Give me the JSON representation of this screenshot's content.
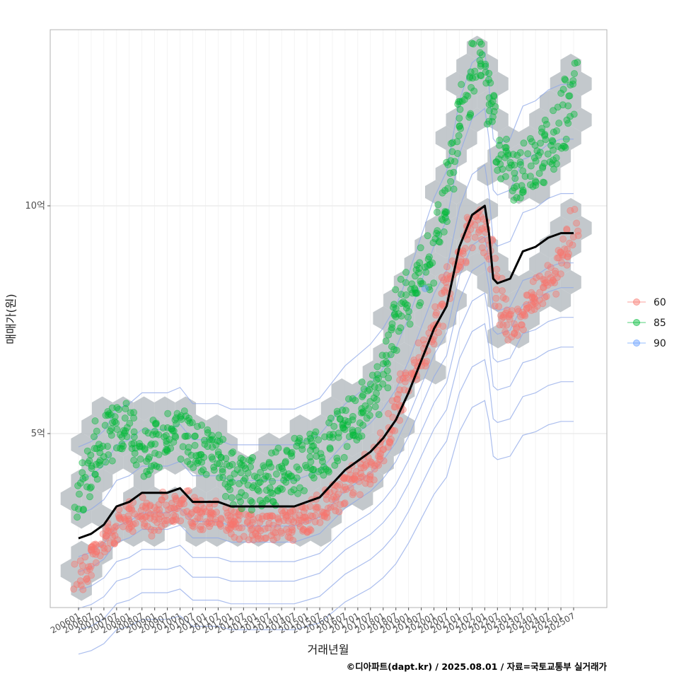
{
  "chart_data": {
    "type": "scatter",
    "xlabel": "거래년월",
    "ylabel": "매매가(원)",
    "caption": "©디아파트(dapt.kr) / 2025.08.01 / 자료=국토교통부 실거래가",
    "x_ticks": [
      "200601",
      "200607",
      "200701",
      "200707",
      "200801",
      "200807",
      "200901",
      "200907",
      "201001",
      "201007",
      "201101",
      "201107",
      "201201",
      "201207",
      "201301",
      "201307",
      "201401",
      "201407",
      "201501",
      "201507",
      "201601",
      "201607",
      "201701",
      "201707",
      "201801",
      "201807",
      "201901",
      "201907",
      "202001",
      "202007",
      "202101",
      "202107",
      "202201",
      "202207",
      "202301",
      "202307",
      "202401",
      "202407",
      "202501",
      "202507"
    ],
    "y_ticks": [
      {
        "value": 5,
        "label": "5억"
      },
      {
        "value": 10,
        "label": "10억"
      }
    ],
    "ylim": [
      1.2,
      13.9
    ],
    "grid": true,
    "legend_position": "right",
    "colors": {
      "60": "#f8766d",
      "85": "#00ba38",
      "90": "#619cff",
      "trend": "#000000",
      "hex": "#b9bec3",
      "contour": "#8fa8e8"
    },
    "series": [
      {
        "name": "60",
        "points": [
          [
            "200601",
            1.9
          ],
          [
            "200603",
            2.0
          ],
          [
            "200605",
            2.2
          ],
          [
            "200607",
            2.3
          ],
          [
            "200609",
            2.4
          ],
          [
            "200611",
            2.6
          ],
          [
            "200701",
            2.7
          ],
          [
            "200703",
            2.8
          ],
          [
            "200705",
            2.9
          ],
          [
            "200707",
            3.0
          ],
          [
            "200709",
            3.0
          ],
          [
            "200711",
            3.1
          ],
          [
            "200801",
            3.2
          ],
          [
            "200803",
            3.2
          ],
          [
            "200805",
            3.3
          ],
          [
            "200807",
            3.3
          ],
          [
            "200809",
            3.2
          ],
          [
            "200811",
            3.1
          ],
          [
            "200901",
            3.1
          ],
          [
            "200903",
            3.2
          ],
          [
            "200905",
            3.3
          ],
          [
            "200907",
            3.4
          ],
          [
            "200909",
            3.4
          ],
          [
            "200911",
            3.4
          ],
          [
            "201001",
            3.4
          ],
          [
            "201003",
            3.4
          ],
          [
            "201005",
            3.3
          ],
          [
            "201007",
            3.3
          ],
          [
            "201009",
            3.2
          ],
          [
            "201011",
            3.2
          ],
          [
            "201101",
            3.2
          ],
          [
            "201103",
            3.2
          ],
          [
            "201105",
            3.2
          ],
          [
            "201107",
            3.2
          ],
          [
            "201109",
            3.2
          ],
          [
            "201111",
            3.1
          ],
          [
            "201201",
            3.1
          ],
          [
            "201203",
            3.1
          ],
          [
            "201205",
            3.0
          ],
          [
            "201207",
            3.0
          ],
          [
            "201209",
            2.9
          ],
          [
            "201211",
            2.9
          ],
          [
            "201301",
            2.9
          ],
          [
            "201303",
            2.9
          ],
          [
            "201305",
            2.9
          ],
          [
            "201307",
            2.9
          ],
          [
            "201309",
            2.9
          ],
          [
            "201311",
            3.0
          ],
          [
            "201401",
            3.0
          ],
          [
            "201403",
            3.0
          ],
          [
            "201405",
            3.0
          ],
          [
            "201407",
            3.0
          ],
          [
            "201409",
            3.1
          ],
          [
            "201411",
            3.1
          ],
          [
            "201501",
            3.1
          ],
          [
            "201503",
            3.2
          ],
          [
            "201505",
            3.3
          ],
          [
            "201507",
            3.4
          ],
          [
            "201509",
            3.5
          ],
          [
            "201511",
            3.5
          ],
          [
            "201601",
            3.6
          ],
          [
            "201603",
            3.6
          ],
          [
            "201605",
            3.7
          ],
          [
            "201607",
            3.8
          ],
          [
            "201609",
            3.9
          ],
          [
            "201611",
            4.0
          ],
          [
            "201701",
            4.0
          ],
          [
            "201703",
            4.1
          ],
          [
            "201705",
            4.2
          ],
          [
            "201707",
            4.3
          ],
          [
            "201709",
            4.4
          ],
          [
            "201711",
            4.5
          ],
          [
            "201801",
            4.7
          ],
          [
            "201803",
            4.9
          ],
          [
            "201805",
            5.1
          ],
          [
            "201807",
            5.4
          ],
          [
            "201809",
            5.7
          ],
          [
            "201811",
            6.0
          ],
          [
            "201901",
            6.2
          ],
          [
            "201903",
            6.4
          ],
          [
            "201905",
            6.6
          ],
          [
            "201907",
            6.8
          ],
          [
            "201909",
            6.9
          ],
          [
            "201911",
            7.1
          ],
          [
            "202001",
            7.3
          ],
          [
            "202003",
            7.5
          ],
          [
            "202005",
            7.8
          ],
          [
            "202007",
            8.1
          ],
          [
            "202009",
            8.4
          ],
          [
            "202011",
            8.7
          ],
          [
            "202101",
            8.9
          ],
          [
            "202103",
            9.1
          ],
          [
            "202105",
            9.3
          ],
          [
            "202107",
            9.5
          ],
          [
            "202109",
            9.6
          ],
          [
            "202111",
            9.5
          ],
          [
            "202201",
            9.3
          ],
          [
            "202203",
            9.0
          ],
          [
            "202205",
            8.6
          ],
          [
            "202207",
            8.1
          ],
          [
            "202209",
            7.7
          ],
          [
            "202211",
            7.4
          ],
          [
            "202301",
            7.3
          ],
          [
            "202303",
            7.4
          ],
          [
            "202305",
            7.5
          ],
          [
            "202307",
            7.6
          ],
          [
            "202309",
            7.8
          ],
          [
            "202311",
            7.9
          ],
          [
            "202401",
            8.0
          ],
          [
            "202403",
            8.1
          ],
          [
            "202405",
            8.2
          ],
          [
            "202407",
            8.3
          ],
          [
            "202409",
            8.4
          ],
          [
            "202411",
            8.6
          ],
          [
            "202501",
            8.8
          ],
          [
            "202503",
            9.0
          ],
          [
            "202505",
            9.3
          ],
          [
            "202507",
            9.6
          ]
        ]
      },
      {
        "name": "85",
        "points": [
          [
            "200601",
            3.6
          ],
          [
            "200603",
            3.9
          ],
          [
            "200605",
            4.2
          ],
          [
            "200607",
            4.4
          ],
          [
            "200609",
            4.5
          ],
          [
            "200611",
            4.7
          ],
          [
            "200701",
            4.8
          ],
          [
            "200703",
            4.9
          ],
          [
            "200705",
            5.0
          ],
          [
            "200707",
            5.0
          ],
          [
            "200709",
            5.1
          ],
          [
            "200711",
            5.1
          ],
          [
            "200801",
            5.0
          ],
          [
            "200803",
            4.9
          ],
          [
            "200805",
            4.8
          ],
          [
            "200807",
            4.7
          ],
          [
            "200809",
            4.6
          ],
          [
            "200811",
            4.6
          ],
          [
            "200901",
            4.7
          ],
          [
            "200903",
            4.8
          ],
          [
            "200905",
            4.9
          ],
          [
            "200907",
            5.0
          ],
          [
            "200909",
            5.0
          ],
          [
            "200911",
            5.1
          ],
          [
            "201001",
            5.0
          ],
          [
            "201003",
            5.0
          ],
          [
            "201005",
            4.9
          ],
          [
            "201007",
            4.8
          ],
          [
            "201009",
            4.7
          ],
          [
            "201011",
            4.6
          ],
          [
            "201101",
            4.5
          ],
          [
            "201103",
            4.5
          ],
          [
            "201105",
            4.4
          ],
          [
            "201107",
            4.4
          ],
          [
            "201109",
            4.3
          ],
          [
            "201111",
            4.2
          ],
          [
            "201201",
            4.1
          ],
          [
            "201203",
            4.0
          ],
          [
            "201205",
            4.0
          ],
          [
            "201207",
            3.9
          ],
          [
            "201209",
            3.9
          ],
          [
            "201211",
            3.9
          ],
          [
            "201301",
            3.9
          ],
          [
            "201303",
            3.9
          ],
          [
            "201305",
            3.9
          ],
          [
            "201307",
            4.0
          ],
          [
            "201309",
            4.0
          ],
          [
            "201311",
            4.0
          ],
          [
            "201401",
            4.1
          ],
          [
            "201403",
            4.1
          ],
          [
            "201405",
            4.2
          ],
          [
            "201407",
            4.2
          ],
          [
            "201409",
            4.3
          ],
          [
            "201411",
            4.3
          ],
          [
            "201501",
            4.4
          ],
          [
            "201503",
            4.5
          ],
          [
            "201505",
            4.5
          ],
          [
            "201507",
            4.6
          ],
          [
            "201509",
            4.7
          ],
          [
            "201511",
            4.7
          ],
          [
            "201601",
            4.8
          ],
          [
            "201603",
            4.9
          ],
          [
            "201605",
            5.0
          ],
          [
            "201607",
            5.1
          ],
          [
            "201609",
            5.2
          ],
          [
            "201611",
            5.3
          ],
          [
            "201701",
            5.4
          ],
          [
            "201703",
            5.5
          ],
          [
            "201705",
            5.6
          ],
          [
            "201707",
            5.8
          ],
          [
            "201709",
            6.0
          ],
          [
            "201711",
            6.2
          ],
          [
            "201801",
            6.5
          ],
          [
            "201803",
            6.8
          ],
          [
            "201805",
            7.1
          ],
          [
            "201807",
            7.4
          ],
          [
            "201809",
            7.7
          ],
          [
            "201811",
            7.9
          ],
          [
            "201901",
            8.0
          ],
          [
            "201903",
            8.1
          ],
          [
            "201905",
            8.2
          ],
          [
            "201907",
            8.3
          ],
          [
            "201909",
            8.5
          ],
          [
            "201911",
            8.8
          ],
          [
            "202001",
            9.1
          ],
          [
            "202003",
            9.5
          ],
          [
            "202005",
            9.9
          ],
          [
            "202007",
            10.3
          ],
          [
            "202009",
            10.8
          ],
          [
            "202011",
            11.3
          ],
          [
            "202101",
            11.7
          ],
          [
            "202103",
            12.1
          ],
          [
            "202105",
            12.5
          ],
          [
            "202107",
            12.9
          ],
          [
            "202109",
            13.3
          ],
          [
            "202111",
            13.1
          ],
          [
            "202201",
            12.7
          ],
          [
            "202203",
            12.3
          ],
          [
            "202205",
            11.9
          ],
          [
            "202207",
            11.5
          ],
          [
            "202209",
            11.1
          ],
          [
            "202211",
            10.9
          ],
          [
            "202301",
            10.8
          ],
          [
            "202303",
            10.7
          ],
          [
            "202305",
            10.7
          ],
          [
            "202307",
            10.8
          ],
          [
            "202309",
            10.9
          ],
          [
            "202311",
            11.0
          ],
          [
            "202401",
            11.0
          ],
          [
            "202403",
            11.1
          ],
          [
            "202405",
            11.2
          ],
          [
            "202407",
            11.3
          ],
          [
            "202409",
            11.4
          ],
          [
            "202411",
            11.5
          ],
          [
            "202501",
            11.7
          ],
          [
            "202503",
            12.0
          ],
          [
            "202505",
            12.3
          ],
          [
            "202507",
            12.6
          ]
        ]
      },
      {
        "name": "90",
        "points": [
          [
            "201909",
            8.2
          ]
        ]
      }
    ],
    "trend_line": {
      "x": [
        "200601",
        "200607",
        "200701",
        "200707",
        "200801",
        "200807",
        "200901",
        "200907",
        "201001",
        "201007",
        "201101",
        "201107",
        "201201",
        "201207",
        "201301",
        "201307",
        "201401",
        "201407",
        "201501",
        "201507",
        "201601",
        "201607",
        "201701",
        "201707",
        "201801",
        "201807",
        "201901",
        "201907",
        "202001",
        "202007",
        "202101",
        "202107",
        "202201",
        "202203",
        "202205",
        "202207",
        "202301",
        "202307",
        "202401",
        "202407",
        "202501",
        "202507"
      ],
      "y": [
        2.7,
        2.8,
        3.0,
        3.4,
        3.5,
        3.7,
        3.7,
        3.7,
        3.8,
        3.5,
        3.5,
        3.5,
        3.4,
        3.4,
        3.4,
        3.4,
        3.4,
        3.4,
        3.5,
        3.6,
        3.9,
        4.2,
        4.4,
        4.6,
        4.9,
        5.3,
        5.9,
        6.6,
        7.3,
        7.8,
        9.1,
        9.8,
        10.0,
        9.4,
        8.4,
        8.3,
        8.4,
        9.0,
        9.1,
        9.3,
        9.4,
        9.4
      ]
    }
  }
}
